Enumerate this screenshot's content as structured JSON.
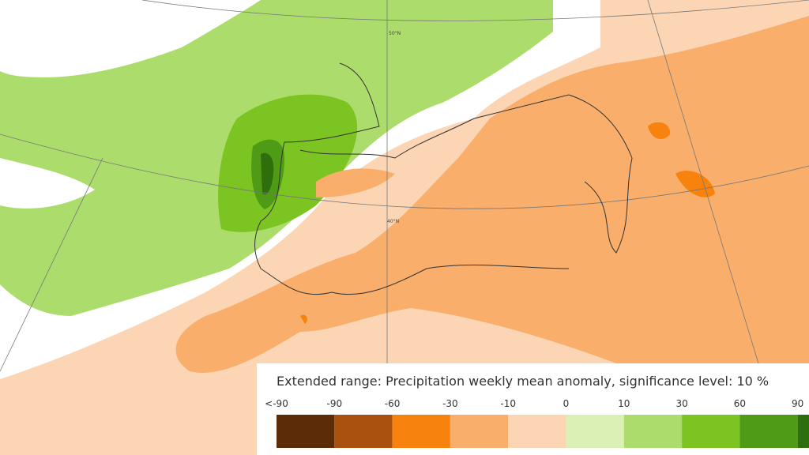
{
  "map": {
    "lat_labels": [
      "50°N",
      "40°N"
    ]
  },
  "legend": {
    "title": "Extended range: Precipitation weekly mean anomaly, significance level: 10 %",
    "labels": [
      "<-90",
      "-90",
      "-60",
      "-30",
      "-10",
      "0",
      "10",
      "30",
      "60",
      "90"
    ],
    "colors": [
      "#5c2c08",
      "#a9520f",
      "#f7830e",
      "#f9ae6b",
      "#fcd6b4",
      "#dbf0b4",
      "#acdd6c",
      "#7cc421",
      "#4f9a16",
      "#2f6e0c"
    ]
  }
}
